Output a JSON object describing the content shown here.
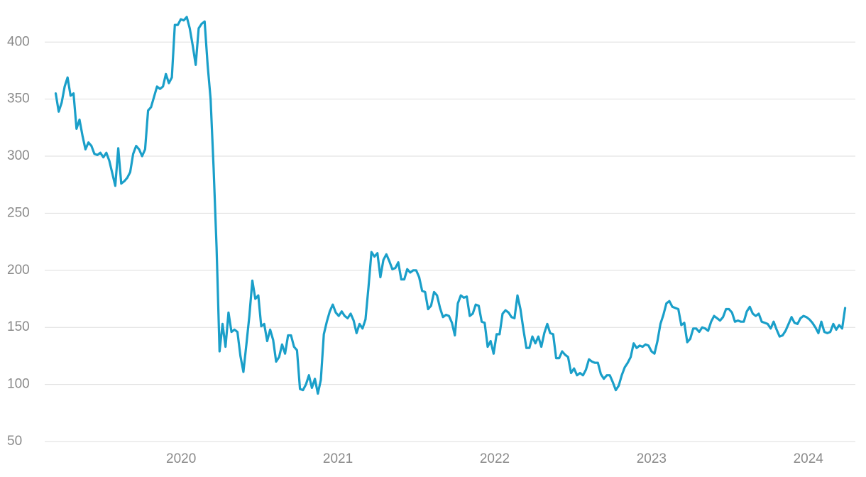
{
  "chart_data": {
    "type": "line",
    "xlim": [
      2019.13,
      2024.3
    ],
    "xticks": [
      2020,
      2021,
      2022,
      2023,
      2024
    ],
    "ylim": [
      50,
      430
    ],
    "yticks": [
      50,
      100,
      150,
      200,
      250,
      300,
      350,
      400
    ],
    "grid": true,
    "series": [
      {
        "color": "#1a9fc9",
        "x": [
          2019.2,
          2019.219,
          2019.238,
          2019.257,
          2019.276,
          2019.295,
          2019.314,
          2019.333,
          2019.352,
          2019.371,
          2019.39,
          2019.409,
          2019.428,
          2019.447,
          2019.466,
          2019.485,
          2019.504,
          2019.523,
          2019.542,
          2019.561,
          2019.58,
          2019.599,
          2019.618,
          2019.637,
          2019.656,
          2019.675,
          2019.694,
          2019.713,
          2019.732,
          2019.751,
          2019.77,
          2019.789,
          2019.808,
          2019.827,
          2019.846,
          2019.865,
          2019.884,
          2019.903,
          2019.922,
          2019.941,
          2019.96,
          2019.979,
          2019.998,
          2020.017,
          2020.036,
          2020.055,
          2020.074,
          2020.093,
          2020.112,
          2020.131,
          2020.15,
          2020.169,
          2020.188,
          2020.207,
          2020.226,
          2020.245,
          2020.264,
          2020.283,
          2020.302,
          2020.321,
          2020.34,
          2020.359,
          2020.378,
          2020.397,
          2020.416,
          2020.435,
          2020.454,
          2020.473,
          2020.492,
          2020.511,
          2020.53,
          2020.549,
          2020.568,
          2020.587,
          2020.606,
          2020.625,
          2020.644,
          2020.663,
          2020.682,
          2020.701,
          2020.72,
          2020.739,
          2020.758,
          2020.777,
          2020.796,
          2020.815,
          2020.834,
          2020.853,
          2020.872,
          2020.891,
          2020.91,
          2020.929,
          2020.948,
          2020.967,
          2020.986,
          2021.005,
          2021.024,
          2021.043,
          2021.062,
          2021.081,
          2021.1,
          2021.119,
          2021.138,
          2021.157,
          2021.176,
          2021.195,
          2021.214,
          2021.233,
          2021.252,
          2021.271,
          2021.29,
          2021.309,
          2021.328,
          2021.347,
          2021.366,
          2021.385,
          2021.404,
          2021.423,
          2021.442,
          2021.461,
          2021.48,
          2021.499,
          2021.518,
          2021.537,
          2021.556,
          2021.575,
          2021.594,
          2021.613,
          2021.632,
          2021.651,
          2021.67,
          2021.689,
          2021.708,
          2021.727,
          2021.746,
          2021.765,
          2021.784,
          2021.803,
          2021.822,
          2021.841,
          2021.86,
          2021.879,
          2021.898,
          2021.917,
          2021.936,
          2021.955,
          2021.974,
          2021.993,
          2022.012,
          2022.031,
          2022.05,
          2022.069,
          2022.088,
          2022.107,
          2022.126,
          2022.145,
          2022.164,
          2022.183,
          2022.202,
          2022.221,
          2022.24,
          2022.259,
          2022.278,
          2022.297,
          2022.316,
          2022.335,
          2022.354,
          2022.373,
          2022.392,
          2022.411,
          2022.43,
          2022.449,
          2022.468,
          2022.487,
          2022.506,
          2022.525,
          2022.544,
          2022.563,
          2022.582,
          2022.601,
          2022.62,
          2022.639,
          2022.658,
          2022.677,
          2022.696,
          2022.715,
          2022.734,
          2022.753,
          2022.772,
          2022.791,
          2022.81,
          2022.829,
          2022.848,
          2022.867,
          2022.886,
          2022.905,
          2022.924,
          2022.943,
          2022.962,
          2022.981,
          2023,
          2023.019,
          2023.038,
          2023.057,
          2023.076,
          2023.095,
          2023.114,
          2023.133,
          2023.152,
          2023.171,
          2023.19,
          2023.209,
          2023.228,
          2023.247,
          2023.266,
          2023.285,
          2023.304,
          2023.323,
          2023.342,
          2023.361,
          2023.38,
          2023.399,
          2023.418,
          2023.437,
          2023.456,
          2023.475,
          2023.494,
          2023.513,
          2023.532,
          2023.551,
          2023.57,
          2023.589,
          2023.608,
          2023.627,
          2023.646,
          2023.665,
          2023.684,
          2023.703,
          2023.722,
          2023.741,
          2023.76,
          2023.779,
          2023.798,
          2023.817,
          2023.836,
          2023.855,
          2023.874,
          2023.893,
          2023.912,
          2023.931,
          2023.95,
          2023.969,
          2023.988,
          2024.007,
          2024.026,
          2024.045,
          2024.064,
          2024.083,
          2024.102,
          2024.121,
          2024.14,
          2024.159,
          2024.178,
          2024.197,
          2024.216,
          2024.235
        ],
        "values": [
          355,
          339,
          347,
          361,
          369,
          353,
          355,
          324,
          332,
          318,
          306,
          312,
          309,
          302,
          301,
          303,
          299,
          303,
          296,
          285,
          274,
          307,
          276,
          278,
          281,
          286,
          302,
          309,
          306,
          300,
          306,
          340,
          343,
          352,
          361,
          359,
          361,
          372,
          364,
          369,
          415,
          415,
          420,
          419,
          422,
          412,
          397,
          380,
          412,
          416,
          418,
          380,
          350,
          290,
          220,
          129,
          153,
          133,
          163,
          146,
          148,
          146,
          125,
          111,
          135,
          160,
          191,
          175,
          178,
          151,
          153,
          138,
          148,
          139,
          120,
          124,
          135,
          127,
          143,
          143,
          133,
          130,
          96,
          95,
          100,
          108,
          97,
          105,
          92,
          104,
          144,
          155,
          164,
          170,
          163,
          160,
          164,
          160,
          158,
          162,
          156,
          145,
          153,
          149,
          157,
          185,
          216,
          212,
          215,
          194,
          209,
          214,
          208,
          201,
          202,
          207,
          192,
          192,
          201,
          198,
          200,
          200,
          194,
          182,
          181,
          166,
          169,
          181,
          178,
          167,
          159,
          161,
          160,
          154,
          143,
          171,
          178,
          176,
          177,
          160,
          162,
          170,
          169,
          155,
          154,
          133,
          138,
          127,
          144,
          144,
          162,
          165,
          163,
          159,
          158,
          178,
          166,
          148,
          132,
          132,
          142,
          136,
          142,
          133,
          145,
          153,
          145,
          144,
          123,
          123,
          129,
          126,
          124,
          110,
          114,
          108,
          110,
          108,
          113,
          122,
          120,
          119,
          119,
          109,
          105,
          108,
          108,
          102,
          95,
          99,
          108,
          115,
          119,
          124,
          136,
          132,
          134,
          133,
          135,
          134,
          129,
          127,
          138,
          153,
          161,
          171,
          173,
          168,
          167,
          166,
          152,
          154,
          137,
          140,
          149,
          149,
          146,
          150,
          149,
          147,
          155,
          160,
          158,
          156,
          159,
          166,
          166,
          163,
          155,
          156,
          155,
          155,
          164,
          168,
          162,
          160,
          162,
          155,
          154,
          153,
          149,
          155,
          148,
          142,
          143,
          147,
          153,
          159,
          154,
          153,
          158,
          160,
          159,
          157,
          154,
          150,
          145,
          155,
          146,
          145,
          146,
          153,
          148,
          152,
          149,
          167
        ]
      }
    ]
  }
}
